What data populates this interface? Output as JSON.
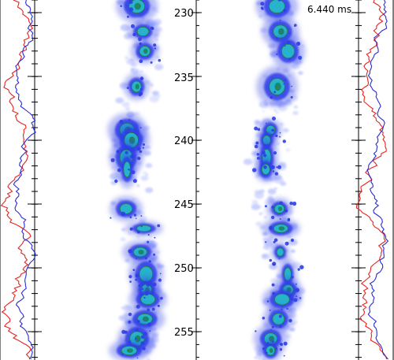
{
  "time_readout": "6.440 ms",
  "axis_ticks": [
    "230",
    "235",
    "240",
    "245",
    "250",
    "255"
  ],
  "colors": {
    "trace_red": "#e8231f",
    "trace_blue": "#2b2bd6",
    "blob_dark": "#1f7a4a",
    "blob_mid": "#27b3c9",
    "blob_blue": "#2f3ee6",
    "blob_light": "#9aa6ff"
  }
}
